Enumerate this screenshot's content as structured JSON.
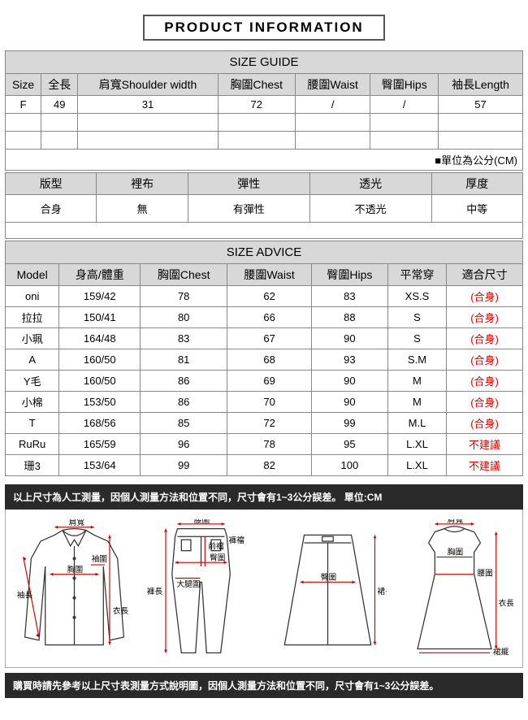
{
  "title": "PRODUCT INFORMATION",
  "sizeGuide": {
    "heading": "SIZE GUIDE",
    "columns": [
      "Size",
      "全長",
      "肩寬Shoulder width",
      "胸圍Chest",
      "腰圍Waist",
      "臀圍Hips",
      "袖長Length"
    ],
    "rows": [
      [
        "F",
        "49",
        "31",
        "72",
        "/",
        "/",
        "57"
      ],
      [
        "",
        "",
        "",
        "",
        "",
        "",
        ""
      ],
      [
        "",
        "",
        "",
        "",
        "",
        "",
        ""
      ]
    ],
    "unitNote": "■單位為公分(CM)"
  },
  "fabric": {
    "columns": [
      "版型",
      "裡布",
      "彈性",
      "透光",
      "厚度"
    ],
    "values": [
      "合身",
      "無",
      "有彈性",
      "不透光",
      "中等"
    ]
  },
  "sizeAdvice": {
    "heading": "SIZE ADVICE",
    "columns": [
      "Model",
      "身高/體重",
      "胸圍Chest",
      "腰圍Waist",
      "臀圍Hips",
      "平常穿",
      "適合尺寸"
    ],
    "rows": [
      {
        "c": [
          "oni",
          "159/42",
          "78",
          "62",
          "83",
          "XS.S",
          "(合身)"
        ],
        "red": true
      },
      {
        "c": [
          "拉拉",
          "150/41",
          "80",
          "66",
          "88",
          "S",
          "(合身)"
        ],
        "red": true
      },
      {
        "c": [
          "小珮",
          "164/48",
          "83",
          "67",
          "90",
          "S",
          "(合身)"
        ],
        "red": true
      },
      {
        "c": [
          "A",
          "160/50",
          "81",
          "68",
          "93",
          "S.M",
          "(合身)"
        ],
        "red": true
      },
      {
        "c": [
          "Y毛",
          "160/50",
          "86",
          "69",
          "90",
          "M",
          "(合身)"
        ],
        "red": true
      },
      {
        "c": [
          "小棉",
          "153/50",
          "86",
          "70",
          "90",
          "M",
          "(合身)"
        ],
        "red": true
      },
      {
        "c": [
          "T",
          "168/56",
          "85",
          "72",
          "99",
          "M.L",
          "(合身)"
        ],
        "red": true
      },
      {
        "c": [
          "RuRu",
          "165/59",
          "96",
          "78",
          "95",
          "L.XL",
          "不建議"
        ],
        "red": true
      },
      {
        "c": [
          "珊3",
          "153/64",
          "99",
          "82",
          "100",
          "L.XL",
          "不建議"
        ],
        "red": true
      }
    ]
  },
  "strip1": "以上尺寸為人工測量，因個人測量方法和位置不同，尺寸會有1~3公分誤差。 單位:CM",
  "strip2": "購買時請先參考以上尺寸表測量方式說明圖，因個人測量方法和位置不同，尺寸會有1~3公分誤差。",
  "labels": {
    "shoulder": "肩寬",
    "chest": "胸圍",
    "waist": "腰圍",
    "sleeve": "袖長",
    "cuff": "袖圍",
    "length": "衣長",
    "pantLen": "褲長",
    "rise": "褲襠",
    "frontRise": "前襠",
    "backRise": "後襠",
    "thigh": "大腿圍",
    "hip": "臀圍",
    "skirtLen": "裙長",
    "hem": "裙擺"
  },
  "colors": {
    "border": "#888",
    "headerBg": "#d8d8d8",
    "textRed": "#d00",
    "measure": "#c00",
    "garmentStroke": "#333",
    "darkStrip": "#2a2a2a"
  }
}
